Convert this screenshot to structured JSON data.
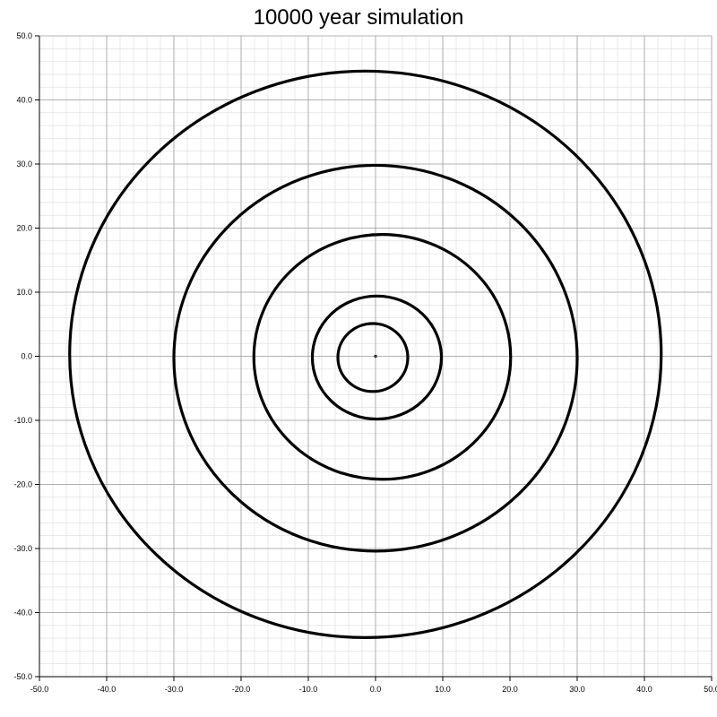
{
  "chart_data": {
    "type": "line",
    "title": "10000 year simulation",
    "xlabel": "",
    "ylabel": "",
    "xlim": [
      -50,
      50
    ],
    "ylim": [
      -50,
      50
    ],
    "grid": true,
    "x_ticks": [
      "-50.0",
      "-40.0",
      "-30.0",
      "-20.0",
      "-10.0",
      "0.0",
      "10.0",
      "20.0",
      "30.0",
      "40.0",
      "50.0"
    ],
    "y_ticks": [
      "50.0",
      "40.0",
      "30.0",
      "20.0",
      "10.0",
      "0.0",
      "-10.0",
      "-20.0",
      "-30.0",
      "-40.0",
      "-50.0"
    ],
    "series": [
      {
        "cx": 0.0,
        "cy": 0.0,
        "rx": 0.15,
        "ry": 0.15
      },
      {
        "cx": -0.4,
        "cy": -0.2,
        "rx": 5.2,
        "ry": 5.3
      },
      {
        "cx": 0.2,
        "cy": -0.2,
        "rx": 9.6,
        "ry": 9.6
      },
      {
        "cx": 1.0,
        "cy": -0.1,
        "rx": 19.1,
        "ry": 19.1
      },
      {
        "cx": 0.0,
        "cy": -0.3,
        "rx": 30.0,
        "ry": 30.1
      },
      {
        "cx": -1.5,
        "cy": 0.3,
        "rx": 44.0,
        "ry": 44.2
      }
    ],
    "colors": {
      "line": "#000000",
      "major_grid": "#9a9a9a",
      "minor_grid": "#dcdcdc",
      "axis": "#000000"
    }
  }
}
